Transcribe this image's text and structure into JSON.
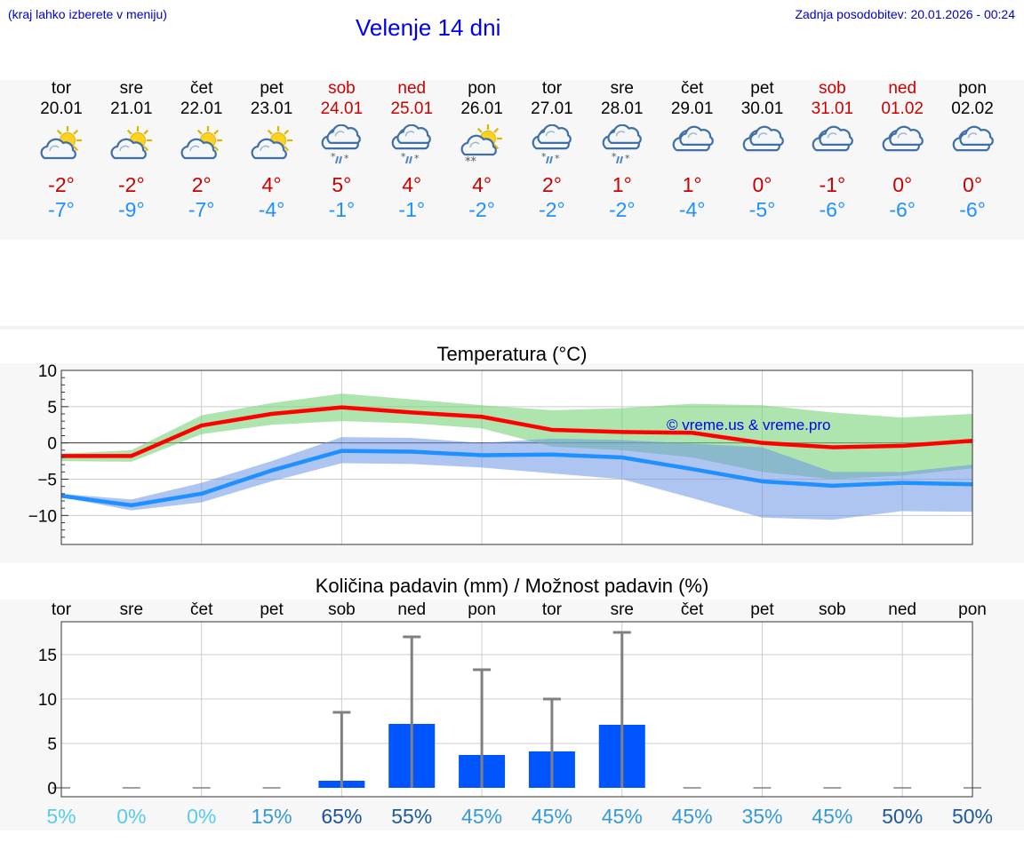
{
  "header": {
    "note": "(kraj lahko izberete v meniju)",
    "title": "Velenje 14 dni",
    "last_update": "Zadnja posodobitev: 20.01.2026 - 00:24"
  },
  "days": [
    {
      "dow": "tor",
      "date": "20.01",
      "weekend": false,
      "icon": "sun-cloud-icon",
      "tmax": "-2°",
      "tmin": "-7°"
    },
    {
      "dow": "sre",
      "date": "21.01",
      "weekend": false,
      "icon": "sun-cloud-icon",
      "tmax": "-2°",
      "tmin": "-9°"
    },
    {
      "dow": "čet",
      "date": "22.01",
      "weekend": false,
      "icon": "sun-cloud-icon",
      "tmax": "2°",
      "tmin": "-7°"
    },
    {
      "dow": "pet",
      "date": "23.01",
      "weekend": false,
      "icon": "sun-cloud-icon",
      "tmax": "4°",
      "tmin": "-4°"
    },
    {
      "dow": "sob",
      "date": "24.01",
      "weekend": true,
      "icon": "cloud-sleet-icon",
      "tmax": "5°",
      "tmin": "-1°"
    },
    {
      "dow": "ned",
      "date": "25.01",
      "weekend": true,
      "icon": "cloud-sleet-icon",
      "tmax": "4°",
      "tmin": "-1°"
    },
    {
      "dow": "pon",
      "date": "26.01",
      "weekend": false,
      "icon": "sun-cloud-snow-icon",
      "tmax": "4°",
      "tmin": "-2°"
    },
    {
      "dow": "tor",
      "date": "27.01",
      "weekend": false,
      "icon": "cloud-sleet-icon",
      "tmax": "2°",
      "tmin": "-2°"
    },
    {
      "dow": "sre",
      "date": "28.01",
      "weekend": false,
      "icon": "cloud-sleet-icon",
      "tmax": "1°",
      "tmin": "-2°"
    },
    {
      "dow": "čet",
      "date": "29.01",
      "weekend": false,
      "icon": "cloud-icon",
      "tmax": "1°",
      "tmin": "-4°"
    },
    {
      "dow": "pet",
      "date": "30.01",
      "weekend": false,
      "icon": "cloud-icon",
      "tmax": "0°",
      "tmin": "-5°"
    },
    {
      "dow": "sob",
      "date": "31.01",
      "weekend": true,
      "icon": "cloud-icon",
      "tmax": "-1°",
      "tmin": "-6°"
    },
    {
      "dow": "ned",
      "date": "01.02",
      "weekend": true,
      "icon": "cloud-icon",
      "tmax": "0°",
      "tmin": "-6°"
    },
    {
      "dow": "pon",
      "date": "02.02",
      "weekend": false,
      "icon": "cloud-icon",
      "tmax": "0°",
      "tmin": "-6°"
    }
  ],
  "chart_data": [
    {
      "type": "line",
      "title": "Temperatura (°C)",
      "ylim": [
        -14,
        10
      ],
      "yticks": [
        10,
        5,
        0,
        -5,
        -10
      ],
      "ytick_labels": [
        "10",
        "5",
        "0",
        "−5",
        "−10"
      ],
      "x": [
        0,
        1,
        2,
        3,
        4,
        5,
        6,
        7,
        8,
        9,
        10,
        11,
        12,
        13
      ],
      "series": [
        {
          "name": "max",
          "color": "#ff0000",
          "values": [
            -1.8,
            -1.8,
            2.4,
            4.0,
            4.9,
            4.2,
            3.6,
            1.8,
            1.5,
            1.4,
            0.0,
            -0.6,
            -0.4,
            0.3
          ],
          "band_low": [
            -2.5,
            -2.6,
            1.2,
            2.5,
            3.0,
            2.7,
            2.0,
            -0.5,
            -1.0,
            -2.0,
            -4.0,
            -5.0,
            -4.5,
            -3.5
          ],
          "band_high": [
            -1.5,
            -1.0,
            3.8,
            5.5,
            6.8,
            6.0,
            5.2,
            4.5,
            4.8,
            5.4,
            5.2,
            4.2,
            3.5,
            4.0
          ]
        },
        {
          "name": "min",
          "color": "#1e90ff",
          "values": [
            -7.3,
            -8.6,
            -7.0,
            -3.8,
            -1.1,
            -1.2,
            -1.7,
            -1.6,
            -2.0,
            -3.6,
            -5.3,
            -5.9,
            -5.5,
            -5.7
          ],
          "band_low": [
            -7.5,
            -9.3,
            -8.2,
            -5.3,
            -2.8,
            -2.9,
            -3.4,
            -4.2,
            -5.0,
            -7.6,
            -10.3,
            -10.6,
            -9.4,
            -9.5
          ],
          "band_high": [
            -7.0,
            -7.8,
            -5.5,
            -2.5,
            0.8,
            0.7,
            0.0,
            0.6,
            0.4,
            -0.1,
            -0.6,
            -4.0,
            -4.0,
            -3.0
          ]
        }
      ],
      "watermark": "© vreme.us & vreme.pro"
    },
    {
      "type": "bar",
      "title": "Količina padavin (mm) / Možnost padavin (%)",
      "categories": [
        "tor",
        "sre",
        "čet",
        "pet",
        "sob",
        "ned",
        "pon",
        "tor",
        "sre",
        "čet",
        "pet",
        "sob",
        "ned",
        "pon"
      ],
      "ylim": [
        -1,
        18.7
      ],
      "yticks": [
        15,
        10,
        5,
        0
      ],
      "ytick_labels": [
        "15",
        "10",
        "5",
        "0"
      ],
      "values": [
        0,
        0,
        0,
        0,
        0.8,
        7.2,
        3.7,
        4.1,
        7.1,
        0,
        0,
        0,
        0,
        0
      ],
      "error_high": [
        0,
        0,
        0,
        0,
        8.5,
        17.0,
        13.3,
        10.0,
        17.5,
        0,
        0,
        0,
        0,
        0
      ],
      "probabilities": [
        "5%",
        "0%",
        "0%",
        "15%",
        "65%",
        "55%",
        "45%",
        "45%",
        "45%",
        "45%",
        "35%",
        "45%",
        "50%",
        "50%"
      ],
      "probability_colors": [
        "#55ccee",
        "#55ccee",
        "#55ccee",
        "#3399dd",
        "#1a4fa8",
        "#1a5aa0",
        "#3399dd",
        "#3399dd",
        "#3399dd",
        "#3399dd",
        "#3399dd",
        "#3399dd",
        "#1a5aa0",
        "#1a5aa0"
      ],
      "bar_color": "#0055ff",
      "whisker_color": "#808080"
    }
  ]
}
